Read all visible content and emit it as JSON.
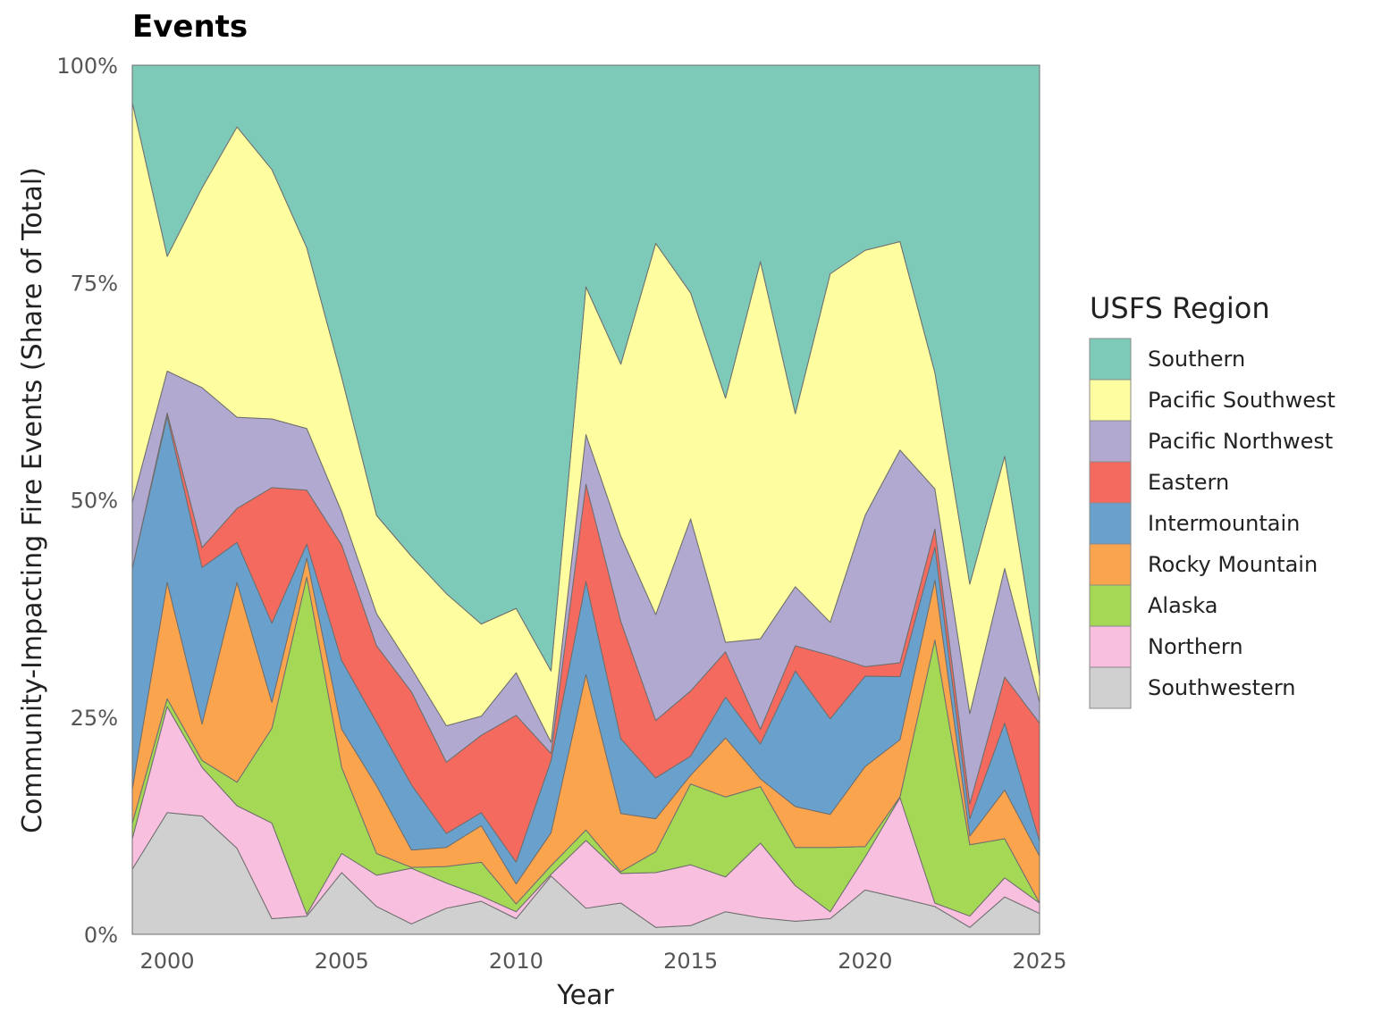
{
  "chart_data": {
    "type": "area",
    "stacked": true,
    "normalized": true,
    "title": "Events",
    "xlabel": "Year",
    "ylabel": "Community-Impacting Fire Events (Share of Total)",
    "xlim": [
      1999,
      2025
    ],
    "ylim": [
      0,
      100
    ],
    "x_ticks": [
      2000,
      2005,
      2010,
      2015,
      2020,
      2025
    ],
    "y_ticks": [
      0,
      25,
      50,
      75,
      100
    ],
    "y_tick_labels": [
      "0%",
      "25%",
      "50%",
      "75%",
      "100%"
    ],
    "grid": false,
    "legend": {
      "title": "USFS Region",
      "position": "right"
    },
    "x": [
      1999,
      2000,
      2001,
      2002,
      2003,
      2004,
      2005,
      2006,
      2007,
      2008,
      2009,
      2010,
      2011,
      2012,
      2013,
      2014,
      2015,
      2016,
      2017,
      2018,
      2019,
      2020,
      2021,
      2022,
      2023,
      2024,
      2025
    ],
    "series": [
      {
        "name": "Southwestern",
        "color": "#D0D0D0",
        "values": [
          7.5,
          14,
          13.6,
          9.9,
          1.8,
          2.1,
          7.1,
          3.2,
          1.2,
          3.0,
          3.8,
          1.8,
          6.7,
          3.0,
          3.6,
          0.8,
          1.0,
          2.6,
          1.9,
          1.5,
          1.8,
          5.1,
          4.2,
          3.2,
          0.8,
          4.3,
          2.4
        ]
      },
      {
        "name": "Northern",
        "color": "#F8BFDF",
        "values": [
          3.5,
          12.2,
          5.6,
          4.9,
          11.0,
          0.2,
          2.2,
          3.6,
          6.4,
          2.9,
          0.6,
          0.8,
          0.2,
          7.8,
          3.4,
          6.3,
          7.0,
          4.0,
          8.6,
          4.1,
          0.8,
          3.8,
          11.6,
          0.4,
          1.3,
          2.2,
          1.2
        ]
      },
      {
        "name": "Alaska",
        "color": "#A5D854",
        "values": [
          1.8,
          0.9,
          0.8,
          2.7,
          10.9,
          38.8,
          9.9,
          2.5,
          0.1,
          1.9,
          3.9,
          0.9,
          1.0,
          1.2,
          0.2,
          2.4,
          9.3,
          9.2,
          6.5,
          4.4,
          7.4,
          1.2,
          0.1,
          30.3,
          8.2,
          4.5,
          0
        ]
      },
      {
        "name": "Rocky Mountain",
        "color": "#FBA44E",
        "values": [
          3.9,
          13.4,
          4.2,
          23.0,
          3.0,
          2.2,
          4.4,
          7.8,
          2.0,
          2.2,
          4.2,
          2.3,
          3.8,
          17.9,
          6.7,
          3.8,
          1.0,
          6.8,
          0.9,
          4.7,
          3.8,
          9.2,
          6.6,
          6.9,
          1.0,
          5.6,
          5.4
        ]
      },
      {
        "name": "Intermountain",
        "color": "#6AA1CC",
        "values": [
          25.4,
          19.1,
          18.0,
          4.6,
          9.1,
          1.6,
          7.9,
          7.3,
          7.5,
          1.6,
          1.5,
          2.5,
          8.3,
          10.7,
          8.6,
          4.7,
          2.2,
          4.7,
          4.0,
          15.6,
          11.0,
          10.4,
          7.3,
          3.8,
          2.0,
          7.7,
          1.7
        ]
      },
      {
        "name": "Eastern",
        "color": "#F56A5E",
        "values": [
          0,
          0.4,
          2.3,
          3.9,
          15.6,
          6.2,
          13.3,
          8.8,
          10.7,
          8.2,
          8.9,
          16.9,
          0.8,
          11.2,
          13.5,
          6.6,
          7.5,
          5.2,
          1.7,
          2.9,
          7.3,
          1.1,
          1.6,
          2.1,
          1.7,
          5.3,
          13.6
        ]
      },
      {
        "name": "Pacific Northwest",
        "color": "#B1A9CF",
        "values": [
          7.6,
          4.8,
          18.4,
          10.5,
          7.9,
          7.1,
          3.8,
          3.7,
          2.7,
          4.2,
          2.2,
          4.9,
          1.3,
          5.7,
          9.8,
          12.2,
          19.8,
          1.1,
          10.4,
          6.8,
          3.8,
          17.4,
          24.6,
          4.6,
          10.4,
          12.5,
          2.4
        ]
      },
      {
        "name": "Pacific Southwest",
        "color": "#FEFEA0",
        "values": [
          46.0,
          13.2,
          23.0,
          33.4,
          28.7,
          20.8,
          15.5,
          11.3,
          12.9,
          15.2,
          10.6,
          7.4,
          8.2,
          17.0,
          19.8,
          42.7,
          26.0,
          28.1,
          43.4,
          19.9,
          40.1,
          30.5,
          24.1,
          13.4,
          14.9,
          12.9,
          3.0
        ]
      },
      {
        "name": "Southern",
        "color": "#7ECAB9",
        "values": [
          4.3,
          22.0,
          14.1,
          7.1,
          12.0,
          21.0,
          35.9,
          51.8,
          56.5,
          60.8,
          64.3,
          62.5,
          69.7,
          25.5,
          34.4,
          20.5,
          26.2,
          38.3,
          22.6,
          40.1,
          24.0,
          21.3,
          20.4,
          35.4,
          59.7,
          45.0,
          70.3
        ]
      }
    ]
  }
}
